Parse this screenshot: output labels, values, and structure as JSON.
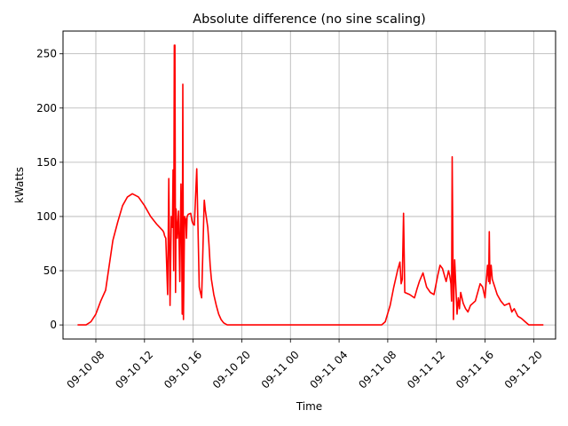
{
  "chart_data": {
    "type": "line",
    "title": "Absolute difference (no sine scaling)",
    "xlabel": "Time",
    "ylabel": "kWatts",
    "x_unit": "hours",
    "xlim": [
      5.3,
      45.8
    ],
    "ylim": [
      -13,
      271
    ],
    "grid": true,
    "x_ticks": [
      {
        "value": 8,
        "label": "09-10 08"
      },
      {
        "value": 12,
        "label": "09-10 12"
      },
      {
        "value": 16,
        "label": "09-10 16"
      },
      {
        "value": 20,
        "label": "09-10 20"
      },
      {
        "value": 24,
        "label": "09-11 00"
      },
      {
        "value": 28,
        "label": "09-11 04"
      },
      {
        "value": 32,
        "label": "09-11 08"
      },
      {
        "value": 36,
        "label": "09-11 12"
      },
      {
        "value": 40,
        "label": "09-11 16"
      },
      {
        "value": 44,
        "label": "09-11 20"
      }
    ],
    "y_ticks": [
      0,
      50,
      100,
      150,
      200,
      250
    ],
    "series": [
      {
        "color": "#ff0000",
        "x": [
          6.5,
          7.2,
          7.6,
          8.0,
          8.4,
          8.8,
          9.1,
          9.4,
          9.8,
          10.2,
          10.6,
          11.0,
          11.5,
          12.0,
          12.5,
          13.0,
          13.5,
          13.6,
          13.63,
          13.66,
          13.7,
          13.75,
          13.9,
          14.0,
          14.1,
          14.2,
          14.3,
          14.35,
          14.4,
          14.45,
          14.5,
          14.55,
          14.6,
          14.7,
          14.8,
          14.9,
          15.0,
          15.05,
          15.1,
          15.15,
          15.2,
          15.3,
          15.4,
          15.45,
          15.5,
          15.6,
          15.8,
          15.9,
          16.0,
          16.1,
          16.3,
          16.5,
          16.7,
          16.9,
          16.92,
          17.0,
          17.1,
          17.2,
          17.3,
          17.4,
          17.5,
          17.7,
          17.9,
          18.1,
          18.3,
          18.5,
          18.8,
          19.3,
          19.7,
          20.0,
          24.0,
          28.0,
          31.0,
          31.5,
          31.8,
          32.2,
          32.5,
          32.8,
          33.0,
          33.1,
          33.2,
          33.3,
          33.4,
          33.8,
          34.2,
          34.4,
          34.6,
          34.9,
          35.2,
          35.5,
          35.8,
          36.1,
          36.3,
          36.5,
          36.8,
          37.0,
          37.1,
          37.2,
          37.25,
          37.3,
          37.4,
          37.5,
          37.7,
          37.8,
          37.9,
          38.0,
          38.2,
          38.4,
          38.6,
          38.8,
          39.2,
          39.6,
          39.8,
          40.0,
          40.2,
          40.3,
          40.35,
          40.4,
          40.5,
          40.6,
          40.8,
          41.0,
          41.3,
          41.6,
          42.0,
          42.2,
          42.4,
          42.7,
          43.0,
          43.3,
          43.6,
          44.0,
          44.4,
          44.8
        ],
        "y": [
          0,
          0,
          3,
          10,
          22,
          32,
          55,
          78,
          95,
          110,
          118,
          121,
          118,
          110,
          100,
          93,
          87,
          85,
          83,
          82,
          81,
          80,
          28,
          135,
          18,
          100,
          90,
          143,
          50,
          258,
          258,
          30,
          107,
          80,
          105,
          40,
          130,
          90,
          10,
          222,
          5,
          100,
          97,
          80,
          100,
          102,
          103,
          96,
          93,
          92,
          144,
          35,
          25,
          112,
          115,
          106,
          98,
          90,
          75,
          55,
          42,
          28,
          18,
          10,
          5,
          2,
          0,
          0,
          0,
          0,
          0,
          0,
          0,
          0,
          3,
          18,
          35,
          50,
          58,
          38,
          42,
          103,
          30,
          28,
          25,
          33,
          40,
          48,
          35,
          30,
          28,
          45,
          55,
          52,
          40,
          50,
          45,
          38,
          22,
          155,
          5,
          60,
          10,
          25,
          15,
          30,
          20,
          15,
          12,
          18,
          22,
          38,
          35,
          25,
          55,
          40,
          86,
          38,
          55,
          42,
          35,
          28,
          22,
          18,
          20,
          12,
          15,
          8,
          6,
          3,
          0,
          0,
          0,
          0
        ]
      }
    ]
  }
}
